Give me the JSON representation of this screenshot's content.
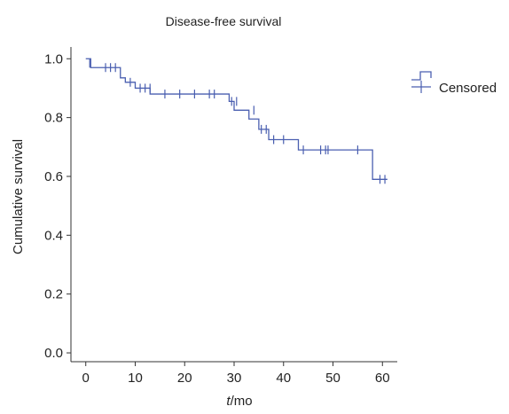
{
  "chart_data": {
    "type": "line",
    "title": "Disease-free survival",
    "ylabel": "Cumulative survival",
    "xlabel_italic": "t",
    "xlabel_unit": "/mo",
    "xlim": [
      -3,
      63
    ],
    "ylim": [
      -0.03,
      1.04
    ],
    "x_ticks": [
      "0",
      "10",
      "20",
      "30",
      "40",
      "50",
      "60"
    ],
    "y_ticks": [
      "0.0",
      "0.2",
      "0.4",
      "0.6",
      "0.8",
      "1.0"
    ],
    "series": [
      {
        "kind": "survival_step",
        "x": [
          0,
          1,
          7,
          8,
          10,
          13,
          29,
          30,
          33,
          35,
          37,
          43,
          58,
          61
        ],
        "y": [
          1.0,
          0.97,
          0.935,
          0.92,
          0.9,
          0.88,
          0.855,
          0.825,
          0.795,
          0.76,
          0.725,
          0.69,
          0.59,
          0.59
        ]
      },
      {
        "name": "Censored",
        "kind": "censored",
        "x": [
          0.8,
          4,
          5,
          6,
          9,
          11,
          12,
          13,
          16,
          19,
          22,
          25,
          26,
          29.5,
          30.5,
          34,
          35.5,
          36.5,
          38,
          40,
          44,
          47.5,
          48.5,
          49,
          55,
          59.5,
          60.5
        ],
        "y": [
          0.985,
          0.97,
          0.97,
          0.97,
          0.92,
          0.9,
          0.9,
          0.9,
          0.88,
          0.88,
          0.88,
          0.88,
          0.88,
          0.855,
          0.855,
          0.825,
          0.76,
          0.76,
          0.725,
          0.725,
          0.69,
          0.69,
          0.69,
          0.69,
          0.69,
          0.59,
          0.59
        ]
      }
    ],
    "legend": {
      "placement": "top-right",
      "entries": [
        "",
        "Censored"
      ]
    },
    "grid": false,
    "colors": {
      "series": "#4a5fb0",
      "axis": "#333333"
    }
  }
}
